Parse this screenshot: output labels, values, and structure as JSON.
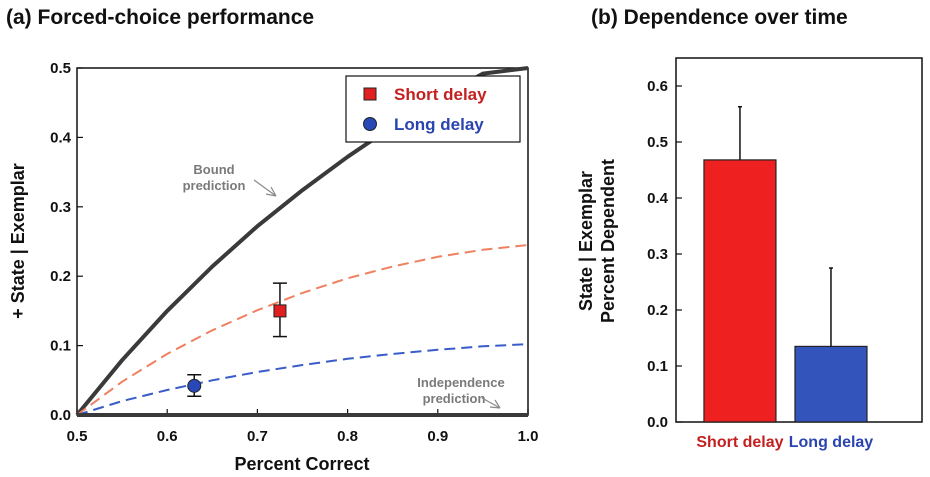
{
  "chart_data": [
    {
      "type": "line",
      "title": "(a) Forced-choice performance",
      "xlabel": "Percent Correct",
      "ylabel": "+ State | Exemplar",
      "xlim": [
        0.5,
        1.0
      ],
      "ylim": [
        0,
        0.5
      ],
      "xticks": [
        "0.5",
        "0.6",
        "0.7",
        "0.8",
        "0.9",
        "1.0"
      ],
      "yticks": [
        "0.0",
        "0.1",
        "0.2",
        "0.3",
        "0.4",
        "0.5"
      ],
      "grid": false,
      "legend_position": "top-right",
      "legend": [
        {
          "label": "Short delay",
          "color": "#e02020",
          "marker": "square"
        },
        {
          "label": "Long delay",
          "color": "#2848b8",
          "marker": "circle"
        }
      ],
      "annotations": [
        {
          "line1": "Bound",
          "line2": "prediction"
        },
        {
          "line1": "Independence",
          "line2": "prediction"
        }
      ],
      "series": [
        {
          "style": "solid",
          "color": "#3a3a3a",
          "x": [
            0.5,
            0.55,
            0.6,
            0.65,
            0.7,
            0.75,
            0.8,
            0.85,
            0.9,
            0.95,
            1.0
          ],
          "y": [
            0.0,
            0.079,
            0.15,
            0.214,
            0.272,
            0.324,
            0.372,
            0.416,
            0.456,
            0.492,
            0.5
          ]
        },
        {
          "style": "dashed",
          "color": "#f08060",
          "x": [
            0.5,
            0.55,
            0.6,
            0.65,
            0.7,
            0.75,
            0.8,
            0.85,
            0.9,
            0.95,
            1.0
          ],
          "y": [
            0.0,
            0.048,
            0.088,
            0.122,
            0.151,
            0.176,
            0.197,
            0.214,
            0.228,
            0.238,
            0.245
          ]
        },
        {
          "style": "dashed",
          "color": "#3a5cc8",
          "x": [
            0.5,
            0.55,
            0.6,
            0.65,
            0.7,
            0.75,
            0.8,
            0.85,
            0.9,
            0.95,
            1.0
          ],
          "y": [
            0.0,
            0.02,
            0.036,
            0.05,
            0.062,
            0.072,
            0.081,
            0.088,
            0.094,
            0.099,
            0.102
          ]
        },
        {
          "style": "solid",
          "color": "#3a3a3a",
          "x": [
            0.5,
            1.0
          ],
          "y": [
            0.0,
            0.0
          ]
        }
      ],
      "points": [
        {
          "name": "Short delay",
          "x": 0.725,
          "y": 0.15,
          "err_low": 0.113,
          "err_high": 0.19,
          "color": "#e02020",
          "marker": "square"
        },
        {
          "name": "Long delay",
          "x": 0.63,
          "y": 0.042,
          "err_low": 0.027,
          "err_high": 0.058,
          "color": "#2848b8",
          "marker": "circle"
        }
      ]
    },
    {
      "type": "bar",
      "title": "(b) Dependence over time",
      "ylabel_line1": "State | Exemplar",
      "ylabel_line2": "Percent Dependent",
      "ylim": [
        0,
        0.65
      ],
      "yticks": [
        "0.0",
        "0.1",
        "0.2",
        "0.3",
        "0.4",
        "0.5",
        "0.6"
      ],
      "categories": [
        "Short delay",
        "Long delay"
      ],
      "category_colors": [
        "#c42020",
        "#2a44b0"
      ],
      "values": [
        0.468,
        0.135
      ],
      "err_high": [
        0.563,
        0.275
      ],
      "colors": [
        "#ee2020",
        "#3355bb"
      ]
    }
  ]
}
